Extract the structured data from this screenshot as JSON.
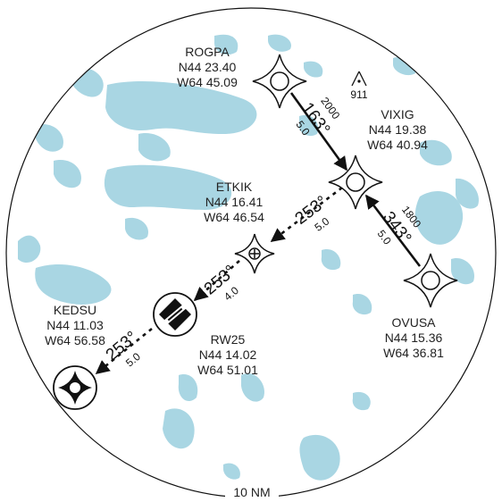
{
  "waypoints": [
    {
      "id": "ROGPA",
      "lat": "N44 23.40",
      "lon": "W64 45.09"
    },
    {
      "id": "VIXIG",
      "lat": "N44 19.38",
      "lon": "W64 40.94"
    },
    {
      "id": "ETKIK",
      "lat": "N44 16.41",
      "lon": "W64 46.54"
    },
    {
      "id": "OVUSA",
      "lat": "N44 15.36",
      "lon": "W64 36.81"
    },
    {
      "id": "RW25",
      "lat": "N44 14.02",
      "lon": "W64 51.01"
    },
    {
      "id": "KEDSU",
      "lat": "N44 11.03",
      "lon": "W64 56.58"
    }
  ],
  "legs": [
    {
      "from": "ROGPA",
      "to": "VIXIG",
      "altitude": "2000",
      "course": "163°",
      "distance": "5.0"
    },
    {
      "from": "OVUSA",
      "to": "VIXIG",
      "altitude": "1800",
      "course": "343°",
      "distance": "5.0"
    },
    {
      "from": "VIXIG",
      "to": "ETKIK",
      "course": "253°",
      "distance": "5.0"
    },
    {
      "from": "ETKIK",
      "to": "RW25",
      "course": "253°",
      "distance": "4.0"
    },
    {
      "from": "RW25",
      "to": "KEDSU",
      "course": "253°",
      "distance": "5.0"
    }
  ],
  "obstacle": {
    "elevation": "911"
  },
  "scale_ring": {
    "label": "10 NM"
  },
  "colors": {
    "water": "#a9d6e3",
    "ink": "#111111"
  }
}
